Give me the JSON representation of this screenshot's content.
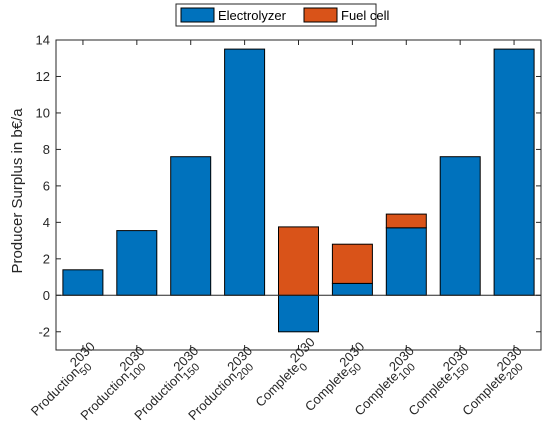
{
  "chart_data": {
    "type": "bar",
    "stacked": true,
    "title": "",
    "xlabel": "",
    "ylabel": "Producer Surplus in b€/a",
    "ylim": [
      -3,
      14
    ],
    "yticks": [
      -2,
      0,
      2,
      4,
      6,
      8,
      10,
      12,
      14
    ],
    "grid": false,
    "legend_position": "top-center",
    "categories": [
      {
        "base": "Production",
        "sup": "2030",
        "sub": "50"
      },
      {
        "base": "Production",
        "sup": "2030",
        "sub": "100"
      },
      {
        "base": "Production",
        "sup": "2030",
        "sub": "150"
      },
      {
        "base": "Production",
        "sup": "2030",
        "sub": "200"
      },
      {
        "base": "Complete",
        "sup": "2030",
        "sub": "0"
      },
      {
        "base": "Complete",
        "sup": "2030",
        "sub": "50"
      },
      {
        "base": "Complete",
        "sup": "2030",
        "sub": "100"
      },
      {
        "base": "Complete",
        "sup": "2030",
        "sub": "150"
      },
      {
        "base": "Complete",
        "sup": "2030",
        "sub": "200"
      }
    ],
    "series": [
      {
        "name": "Electrolyzer",
        "color": "#0072BD",
        "values": [
          1.4,
          3.55,
          7.6,
          13.5,
          -2.0,
          0.65,
          3.7,
          7.6,
          13.5
        ]
      },
      {
        "name": "Fuel cell",
        "color": "#D95319",
        "values": [
          0,
          0,
          0,
          0,
          3.75,
          2.15,
          0.75,
          0,
          0
        ]
      }
    ]
  }
}
